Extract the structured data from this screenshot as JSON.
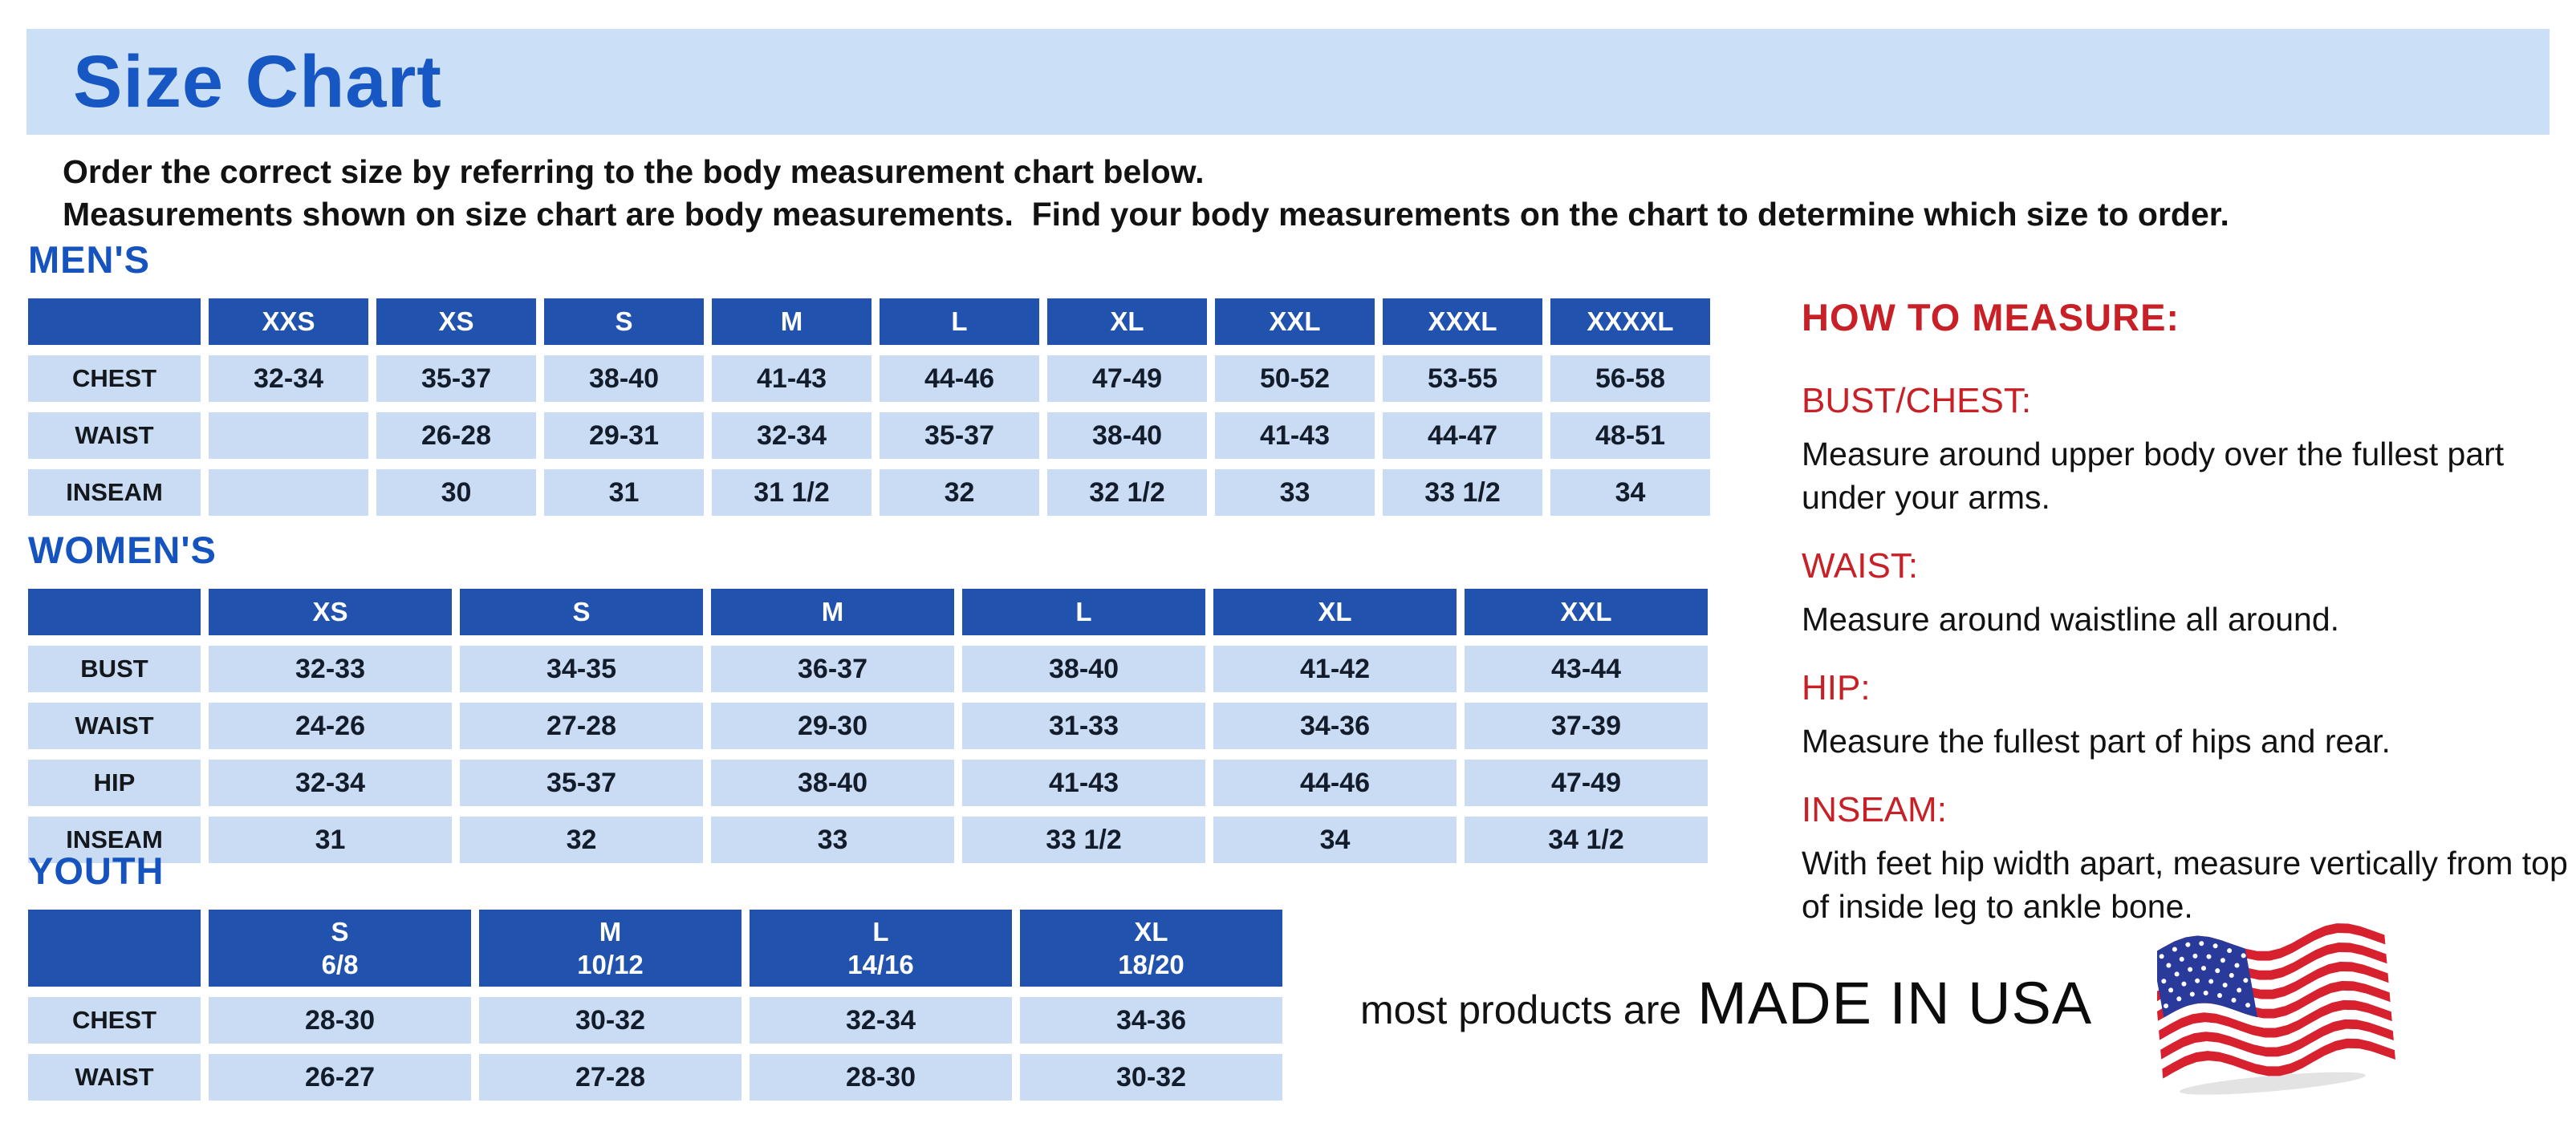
{
  "page": {
    "title": "Size Chart",
    "intro_line1": "Order the correct size by referring to the body measurement chart below.",
    "intro_line2": "Measurements shown on size chart are body measurements.  Find your body measurements on the chart to determine which size to order."
  },
  "colors": {
    "band_blue": "#CBDFF6",
    "title_blue": "#1757C4",
    "heading_blue": "#1553BE",
    "table_header_blue": "#2153AE",
    "table_cell_blue": "#C9DCF3",
    "accent_red": "#C72127",
    "flag_red": "#D8212F",
    "flag_navy": "#2A3A9A"
  },
  "tables": {
    "mens": {
      "heading": "MEN'S",
      "columns": [
        "XXS",
        "XS",
        "S",
        "M",
        "L",
        "XL",
        "XXL",
        "XXXL",
        "XXXXL"
      ],
      "rows": [
        {
          "label": "CHEST",
          "values": [
            "32-34",
            "35-37",
            "38-40",
            "41-43",
            "44-46",
            "47-49",
            "50-52",
            "53-55",
            "56-58"
          ]
        },
        {
          "label": "WAIST",
          "values": [
            "",
            "26-28",
            "29-31",
            "32-34",
            "35-37",
            "38-40",
            "41-43",
            "44-47",
            "48-51"
          ]
        },
        {
          "label": "INSEAM",
          "values": [
            "",
            "30",
            "31",
            "31 1/2",
            "32",
            "32 1/2",
            "33",
            "33 1/2",
            "34"
          ]
        }
      ]
    },
    "womens": {
      "heading": "WOMEN'S",
      "columns": [
        "XS",
        "S",
        "M",
        "L",
        "XL",
        "XXL"
      ],
      "rows": [
        {
          "label": "BUST",
          "values": [
            "32-33",
            "34-35",
            "36-37",
            "38-40",
            "41-42",
            "43-44"
          ]
        },
        {
          "label": "WAIST",
          "values": [
            "24-26",
            "27-28",
            "29-30",
            "31-33",
            "34-36",
            "37-39"
          ]
        },
        {
          "label": "HIP",
          "values": [
            "32-34",
            "35-37",
            "38-40",
            "41-43",
            "44-46",
            "47-49"
          ]
        },
        {
          "label": "INSEAM",
          "values": [
            "31",
            "32",
            "33",
            "33 1/2",
            "34",
            "34 1/2"
          ]
        }
      ]
    },
    "youth": {
      "heading": "YOUTH",
      "columns": [
        "S\n6/8",
        "M\n10/12",
        "L\n14/16",
        "XL\n18/20"
      ],
      "rows": [
        {
          "label": "CHEST",
          "values": [
            "28-30",
            "30-32",
            "32-34",
            "34-36"
          ]
        },
        {
          "label": "WAIST",
          "values": [
            "26-27",
            "27-28",
            "28-30",
            "30-32"
          ]
        }
      ]
    }
  },
  "how_to_measure": {
    "title": "HOW TO MEASURE:",
    "sections": [
      {
        "label": "BUST/CHEST:",
        "text": "Measure around upper body over the fullest part under your arms."
      },
      {
        "label": "WAIST:",
        "text": "Measure around waistline all around."
      },
      {
        "label": "HIP:",
        "text": "Measure the fullest part of hips and rear."
      },
      {
        "label": "INSEAM:",
        "text": "With feet hip width apart, measure vertically from top of inside leg to ankle bone."
      }
    ]
  },
  "footer": {
    "made_in_prefix": "most products are",
    "made_in": "MADE IN USA",
    "flag_icon": "us-flag-icon"
  }
}
